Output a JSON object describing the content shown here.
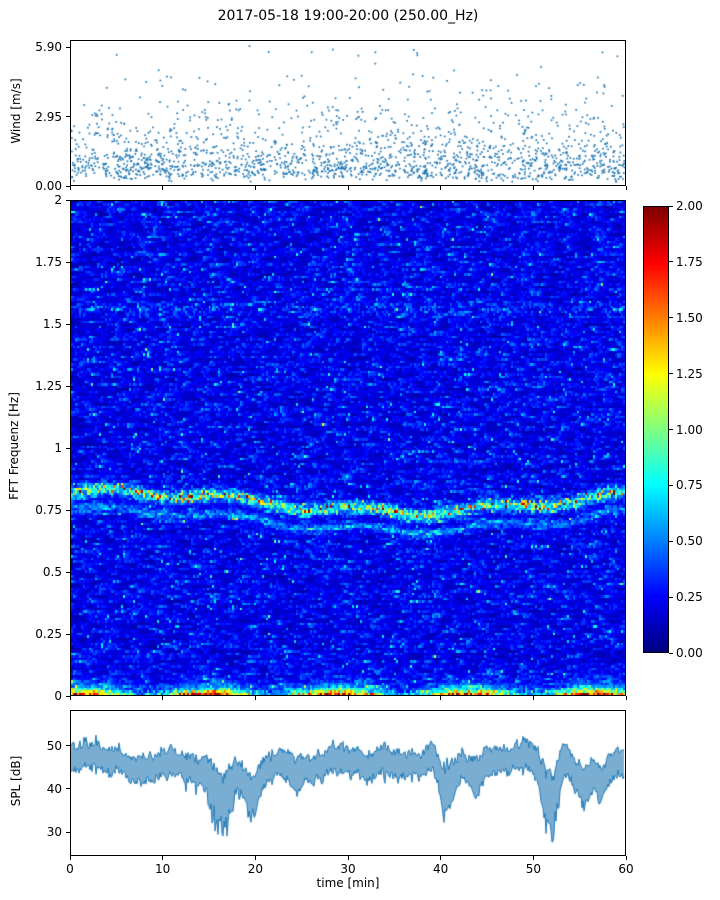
{
  "figure": {
    "title": "2017-05-18 19:00-20:00 (250.00_Hz)",
    "xlabel": "time [min]",
    "background": "#ffffff",
    "frame_color": "#000000"
  },
  "chart_data": [
    {
      "type": "scatter",
      "name": "wind",
      "ylabel": "Wind [m/s]",
      "xlim": [
        0,
        60
      ],
      "ylim": [
        0,
        6.2
      ],
      "yticks": [
        {
          "value": 0,
          "label": "0.00"
        },
        {
          "value": 2.95,
          "label": "2.95"
        },
        {
          "value": 5.9,
          "label": "5.90"
        }
      ],
      "marker_color": "#1f77b4",
      "n_points": 1900,
      "seed": 11,
      "y_distribution": {
        "shape": "right-skewed",
        "typical_range": [
          0.2,
          2.8
        ],
        "max": 5.9
      }
    },
    {
      "type": "heatmap",
      "name": "spectrogram",
      "ylabel": "FFT Frequenz [Hz]",
      "xlim": [
        0,
        60
      ],
      "ylim": [
        0,
        2
      ],
      "yticks": [
        {
          "value": 0,
          "label": "0"
        },
        {
          "value": 0.25,
          "label": "0.25"
        },
        {
          "value": 0.5,
          "label": "0.5"
        },
        {
          "value": 0.75,
          "label": "0.75"
        },
        {
          "value": 1,
          "label": "1"
        },
        {
          "value": 1.25,
          "label": "1.25"
        },
        {
          "value": 1.5,
          "label": "1.5"
        },
        {
          "value": 1.75,
          "label": "1.75"
        },
        {
          "value": 2,
          "label": "2"
        }
      ],
      "colormap": "jet",
      "vmin": 0,
      "vmax": 2,
      "seed": 23,
      "background_noise": {
        "base": 0.05,
        "speckle": 0.18
      },
      "features": [
        {
          "desc": "main narrowband ridge",
          "freq": 0.78,
          "wiggle": 0.04,
          "width": 0.016,
          "intensity": 1.05
        },
        {
          "desc": "secondary ridge below main",
          "freq_offset": -0.075,
          "width": 0.013,
          "intensity": 0.4
        },
        {
          "desc": "strong broadband low-frequency energy",
          "freq_max": 0.05,
          "intensity": 1.9
        },
        {
          "desc": "faint ridge",
          "freq": 1.56,
          "width": 0.02,
          "intensity": 0.32
        }
      ],
      "colorbar": {
        "ticks": [
          {
            "value": 2,
            "label": "2.00"
          },
          {
            "value": 1.75,
            "label": "1.75"
          },
          {
            "value": 1.5,
            "label": "1.50"
          },
          {
            "value": 1.25,
            "label": "1.25"
          },
          {
            "value": 1,
            "label": "1.00"
          },
          {
            "value": 0.75,
            "label": "0.75"
          },
          {
            "value": 0.5,
            "label": "0.50"
          },
          {
            "value": 0.25,
            "label": "0.25"
          },
          {
            "value": 0,
            "label": "0.00"
          }
        ]
      }
    },
    {
      "type": "line",
      "name": "spl",
      "ylabel": "SPL [dB]",
      "xlim": [
        0,
        60
      ],
      "ylim": [
        24.5,
        58.2
      ],
      "yticks": [
        {
          "value": 30,
          "label": "30"
        },
        {
          "value": 40,
          "label": "40"
        },
        {
          "value": 50,
          "label": "50"
        }
      ],
      "xticks": [
        {
          "value": 0,
          "label": "0"
        },
        {
          "value": 10,
          "label": "10"
        },
        {
          "value": 20,
          "label": "20"
        },
        {
          "value": 30,
          "label": "30"
        },
        {
          "value": 40,
          "label": "40"
        },
        {
          "value": 50,
          "label": "50"
        },
        {
          "value": 60,
          "label": "60"
        }
      ],
      "line_color": "#1f77b4",
      "seed": 5,
      "baseline_db": 46.5,
      "band_halfwidth_db": 3,
      "dips": [
        {
          "x": 15.8,
          "depth": 11,
          "width": 1.0
        },
        {
          "x": 17.0,
          "depth": 7,
          "width": 0.6
        },
        {
          "x": 19.6,
          "depth": 8,
          "width": 0.7
        },
        {
          "x": 24.5,
          "depth": 4,
          "width": 0.5
        },
        {
          "x": 40.6,
          "depth": 8,
          "width": 0.7
        },
        {
          "x": 44.0,
          "depth": 6,
          "width": 0.5
        },
        {
          "x": 52.0,
          "depth": 15,
          "width": 0.8
        },
        {
          "x": 55.6,
          "depth": 6,
          "width": 0.6
        },
        {
          "x": 57.5,
          "depth": 4,
          "width": 0.5
        }
      ]
    }
  ]
}
